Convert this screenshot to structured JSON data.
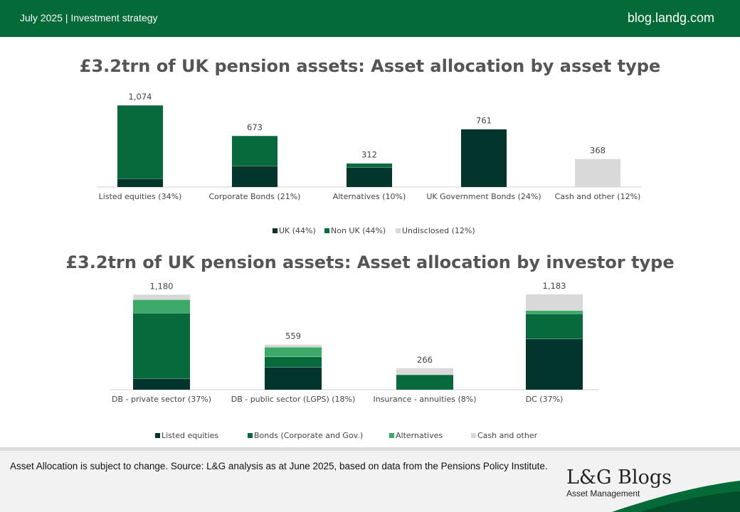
{
  "header": {
    "left_text": "July 2025 | Investment strategy",
    "right_text": "blog.landg.com"
  },
  "colors": {
    "header_green": "#046a38",
    "uk": "#02352c",
    "non_uk": "#066a3c",
    "undisclosed": "#d9d9d9",
    "alternatives": "#3eaa6a",
    "cash": "#d9d9d9"
  },
  "chart_data": [
    {
      "type": "bar",
      "stacked": true,
      "title": "£3.2trn of UK pension assets: Asset allocation by asset type",
      "categories": [
        "Listed equities (34%)",
        "Corporate Bonds (21%)",
        "Alternatives (10%)",
        "UK Government Bonds (24%)",
        "Cash and other (12%)"
      ],
      "totals": [
        "1,074",
        "673",
        "312",
        "761",
        "368"
      ],
      "series": [
        {
          "name": "UK (44%)",
          "color": "#02352c",
          "values": [
            110,
            280,
            260,
            761,
            0
          ]
        },
        {
          "name": "Non UK (44%)",
          "color": "#066a3c",
          "values": [
            964,
            393,
            52,
            0,
            0
          ]
        },
        {
          "name": "Undisclosed (12%)",
          "color": "#d9d9d9",
          "values": [
            0,
            0,
            0,
            0,
            368
          ]
        }
      ],
      "ylim": [
        0,
        1074
      ],
      "grid": false,
      "legend_position": "bottom"
    },
    {
      "type": "bar",
      "stacked": true,
      "title": "£3.2trn of UK pension assets: Asset allocation by investor type",
      "categories": [
        "DB - private sector (37%)",
        "DB - public sector (LGPS) (18%)",
        "Insurance - annuities (8%)",
        "DC  (37%)"
      ],
      "totals": [
        "1,180",
        "559",
        "266",
        "1,183"
      ],
      "series": [
        {
          "name": "Listed equities",
          "color": "#02352c",
          "values": [
            140,
            280,
            0,
            632
          ]
        },
        {
          "name": "Bonds (Corporate and Gov.)",
          "color": "#066a3c",
          "values": [
            813,
            129,
            186,
            312
          ]
        },
        {
          "name": "Alternatives",
          "color": "#3eaa6a",
          "values": [
            165,
            120,
            0,
            40
          ]
        },
        {
          "name": "Cash and other",
          "color": "#d9d9d9",
          "values": [
            62,
            30,
            80,
            199
          ]
        }
      ],
      "ylim": [
        0,
        1183
      ],
      "grid": false,
      "legend_position": "bottom"
    }
  ],
  "footer": {
    "note": "Asset Allocation is subject to change. Source: L&G analysis as at June 2025, based on data from the Pensions Policy Institute.",
    "brand_name": "L&G Blogs",
    "brand_sub": "Asset Management"
  }
}
